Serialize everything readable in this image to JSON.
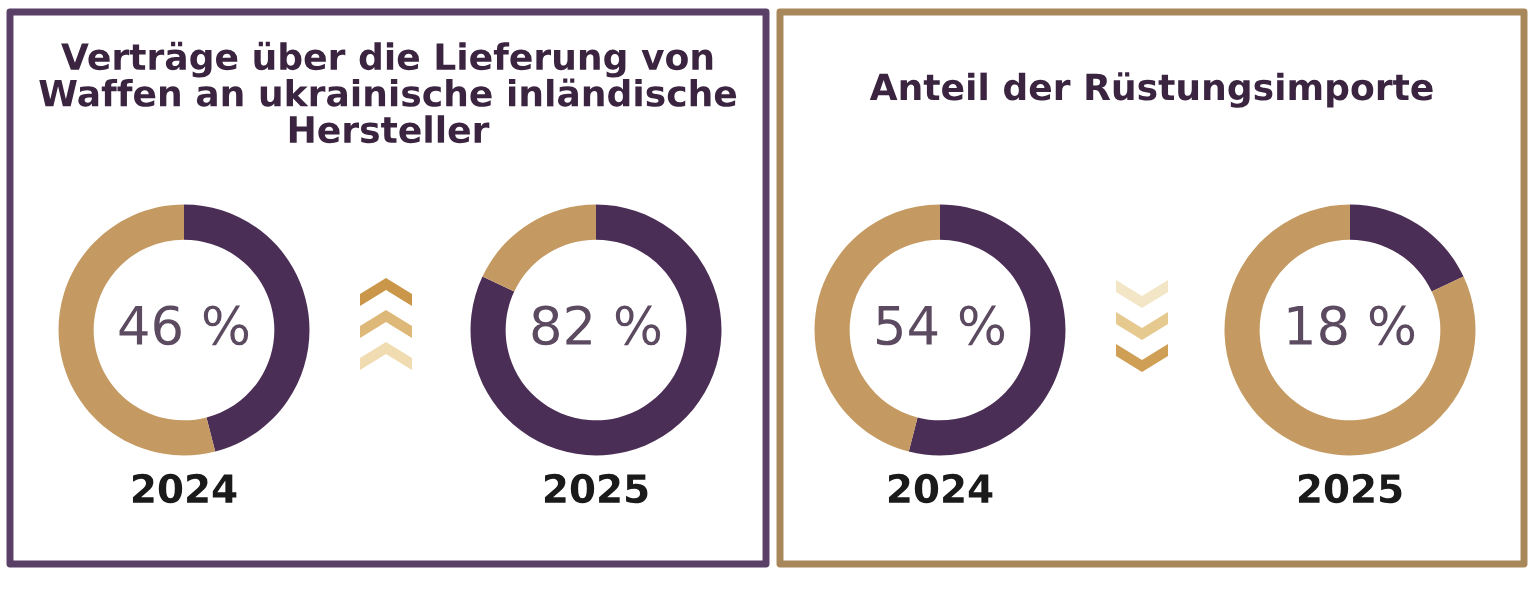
{
  "chart_data": [
    {
      "type": "donut",
      "title": "Verträge über die Lieferung von Waffen an ukrainische inländische Hersteller",
      "categories": [
        null,
        null
      ],
      "values": [
        46,
        54
      ],
      "colors": [
        "#4b2e55",
        "#c49a62"
      ],
      "annotations": [
        "46 %"
      ],
      "xlabel": "2024"
    },
    {
      "type": "donut",
      "categories": [
        null,
        null
      ],
      "values": [
        82,
        18
      ],
      "colors": [
        "#4b2e55",
        "#c49a62"
      ],
      "annotations": [
        "82 %"
      ],
      "xlabel": "2025"
    },
    {
      "type": "donut",
      "title": "Anteil der Rüstungsimporte",
      "categories": [
        null,
        null
      ],
      "values": [
        54,
        46
      ],
      "colors": [
        "#4b2e55",
        "#c49a62"
      ],
      "annotations": [
        "54 %"
      ],
      "xlabel": "2024"
    },
    {
      "type": "donut",
      "categories": [
        null,
        null
      ],
      "values": [
        18,
        82
      ],
      "colors": [
        "#4b2e55",
        "#c49a62"
      ],
      "annotations": [
        "18 %"
      ],
      "xlabel": "2025"
    }
  ]
}
